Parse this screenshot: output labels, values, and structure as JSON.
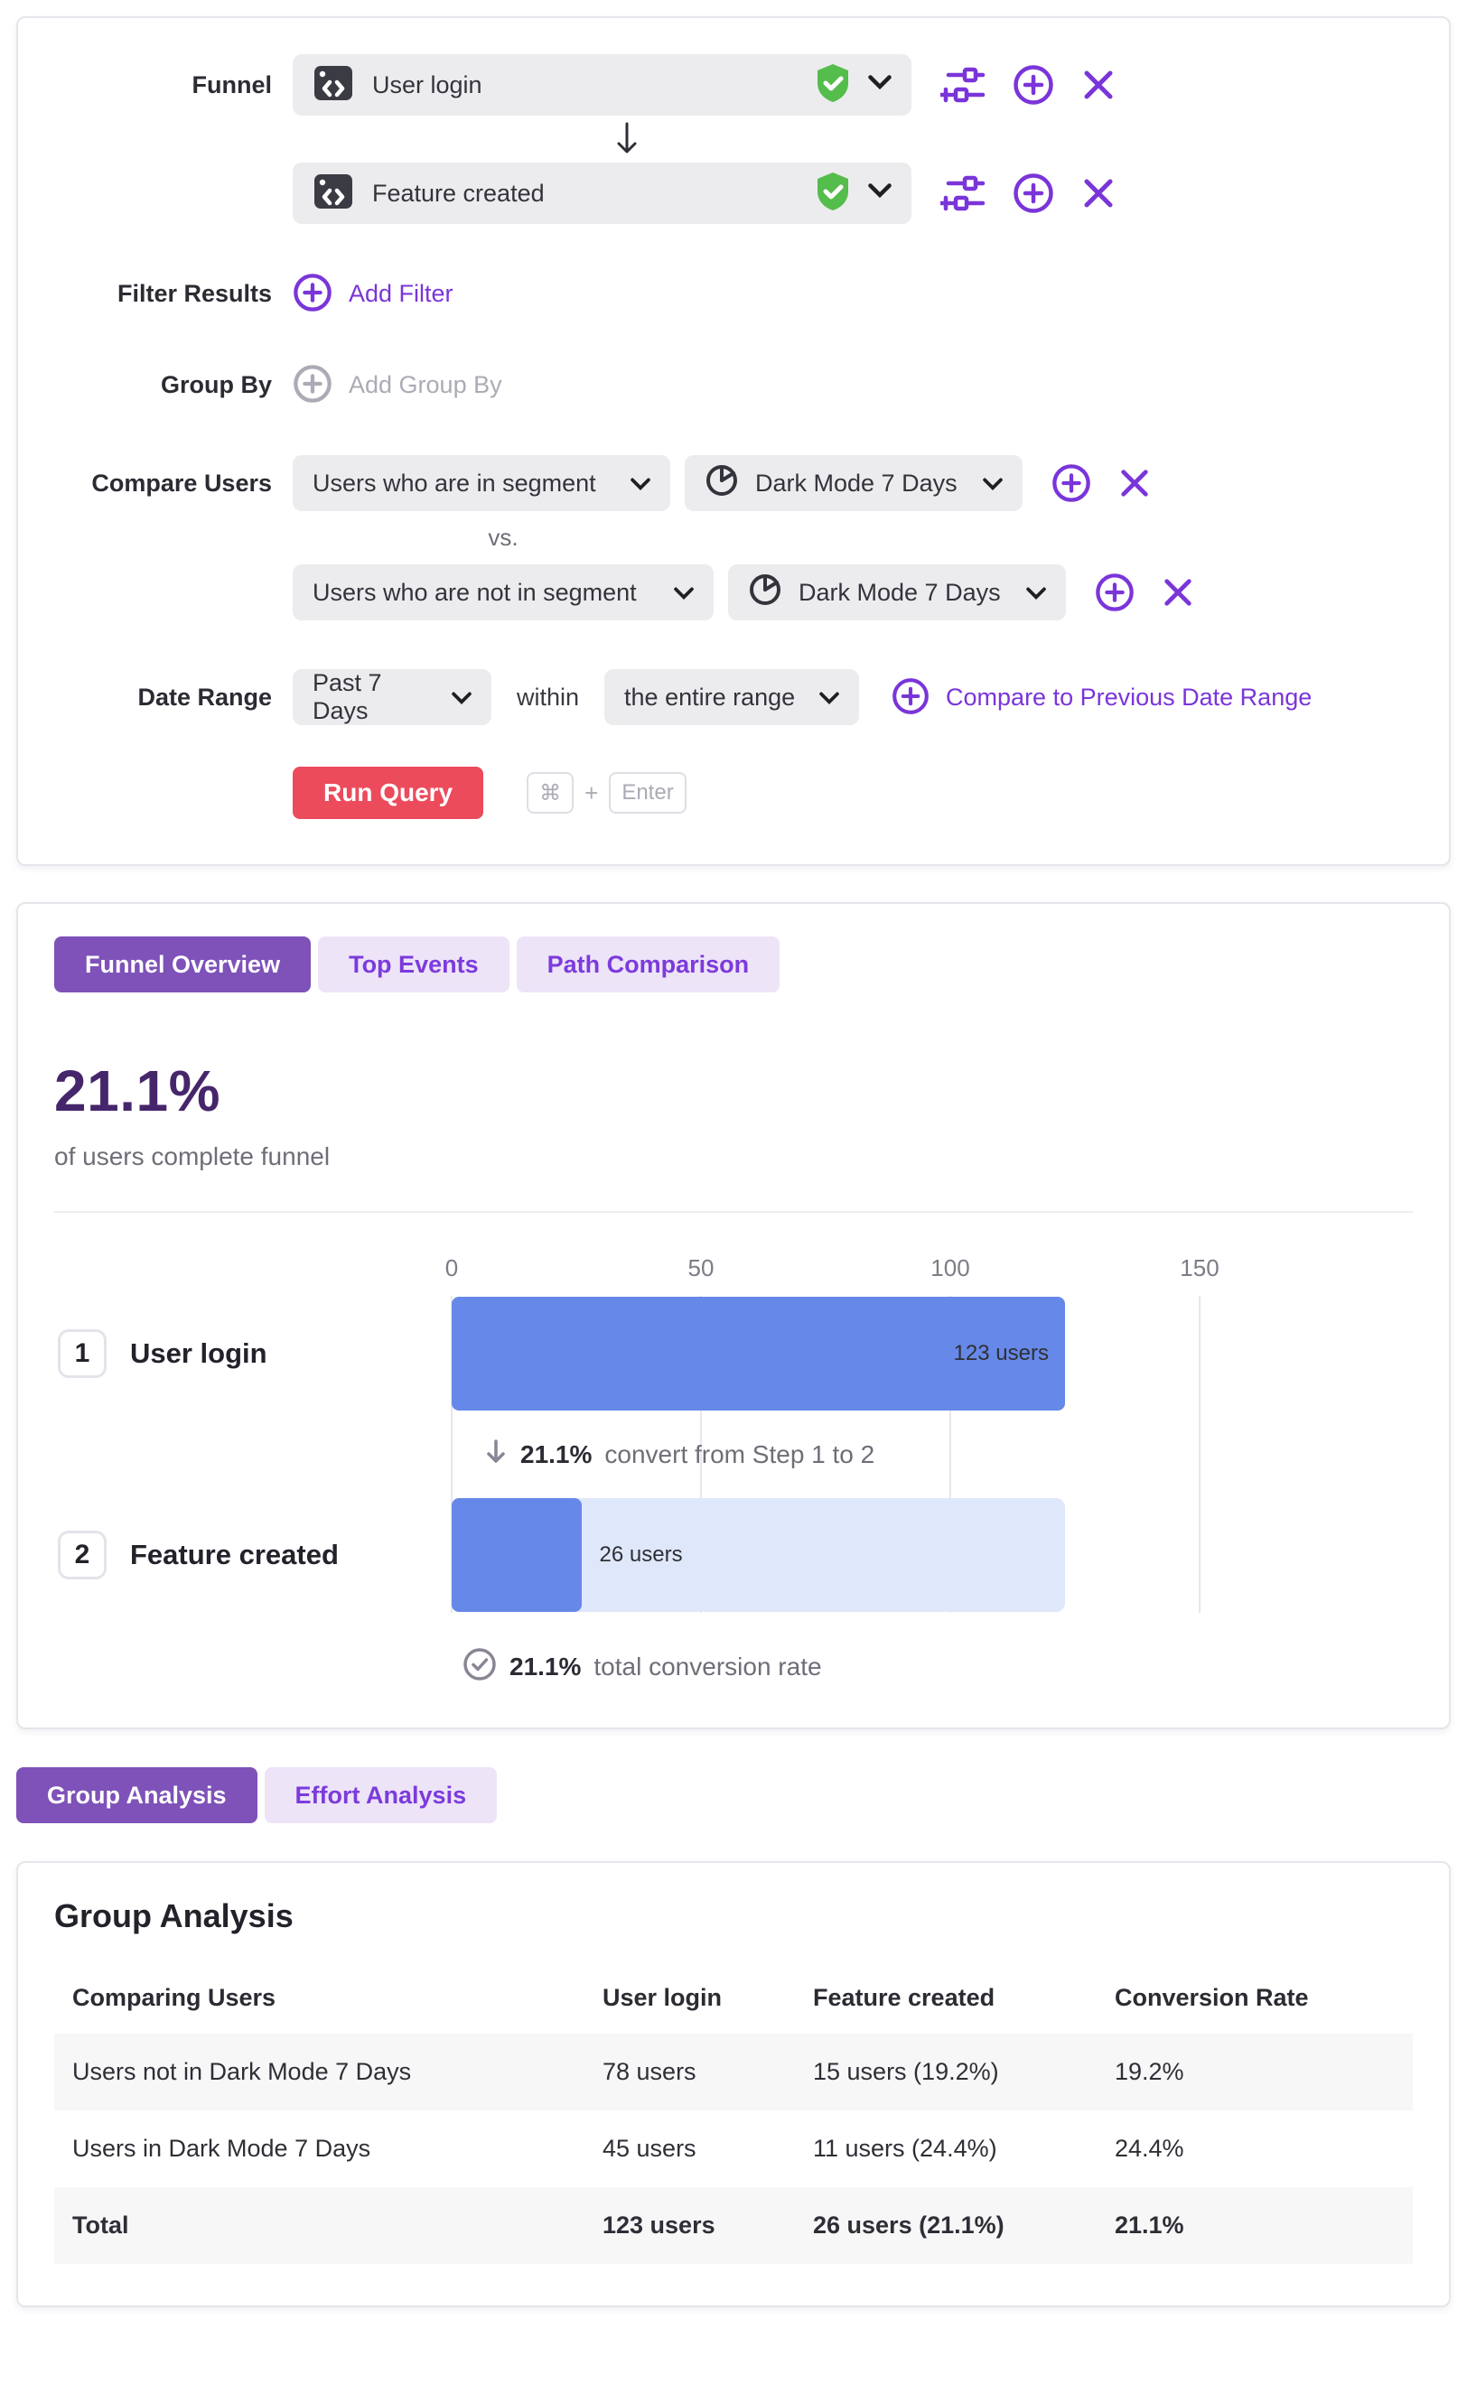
{
  "colors": {
    "accent_purple": "#7A35D9",
    "tab_active_bg": "#7E52B8",
    "tab_inactive_bg": "#EDE4F8",
    "headline_purple": "#46266B",
    "bar_blue": "#6688E8",
    "bar_track_blue": "#DFE7FB",
    "run_query_red": "#EC4B5C",
    "shield_green": "#55BD4B"
  },
  "query_builder": {
    "funnel_label": "Funnel",
    "steps": [
      {
        "event": "User login"
      },
      {
        "event": "Feature created"
      }
    ],
    "filter_results": {
      "label": "Filter Results",
      "action": "Add Filter"
    },
    "group_by": {
      "label": "Group By",
      "action": "Add Group By"
    },
    "compare_users": {
      "label": "Compare Users",
      "vs": "vs.",
      "rows": [
        {
          "selector": "Users who are in segment",
          "segment": "Dark Mode 7 Days"
        },
        {
          "selector": "Users who are not in segment",
          "segment": "Dark Mode 7 Days"
        }
      ]
    },
    "date_range": {
      "label": "Date Range",
      "value": "Past 7 Days",
      "within": "within",
      "within_value": "the entire range",
      "compare_link": "Compare to Previous Date Range"
    },
    "run": {
      "button": "Run Query",
      "key1": "⌘",
      "plus": "+",
      "key2": "Enter"
    }
  },
  "results": {
    "tabs": [
      {
        "label": "Funnel Overview",
        "active": true
      },
      {
        "label": "Top Events",
        "active": false
      },
      {
        "label": "Path Comparison",
        "active": false
      }
    ],
    "headline": "21.1%",
    "headline_caption": "of users complete funnel",
    "chart_data": {
      "type": "bar",
      "orientation": "horizontal",
      "title": "Funnel Overview",
      "xlim": [
        0,
        150
      ],
      "x_ticks": [
        0,
        50,
        100,
        150
      ],
      "grid": true,
      "steps": [
        {
          "step": "1",
          "label": "User login",
          "users": 123,
          "users_label": "123 users"
        },
        {
          "step": "2",
          "label": "Feature created",
          "users": 26,
          "users_label": "26 users"
        }
      ],
      "step_conversion": {
        "value": "21.1%",
        "text": "convert from Step 1 to 2"
      },
      "total_conversion": {
        "value": "21.1%",
        "text": "total conversion rate"
      }
    }
  },
  "analysis_tabs": [
    {
      "label": "Group Analysis",
      "active": true
    },
    {
      "label": "Effort Analysis",
      "active": false
    }
  ],
  "group_analysis": {
    "title": "Group Analysis",
    "columns": [
      "Comparing Users",
      "User login",
      "Feature created",
      "Conversion Rate"
    ],
    "rows": [
      {
        "comparing": "Users not in Dark Mode 7 Days",
        "user_login": "78 users",
        "feature_created": "15 users (19.2%)",
        "conversion_rate": "19.2%"
      },
      {
        "comparing": "Users in Dark Mode 7 Days",
        "user_login": "45 users",
        "feature_created": "11 users (24.4%)",
        "conversion_rate": "24.4%"
      },
      {
        "comparing": "Total",
        "user_login": "123 users",
        "feature_created": "26 users (21.1%)",
        "conversion_rate": "21.1%"
      }
    ]
  }
}
